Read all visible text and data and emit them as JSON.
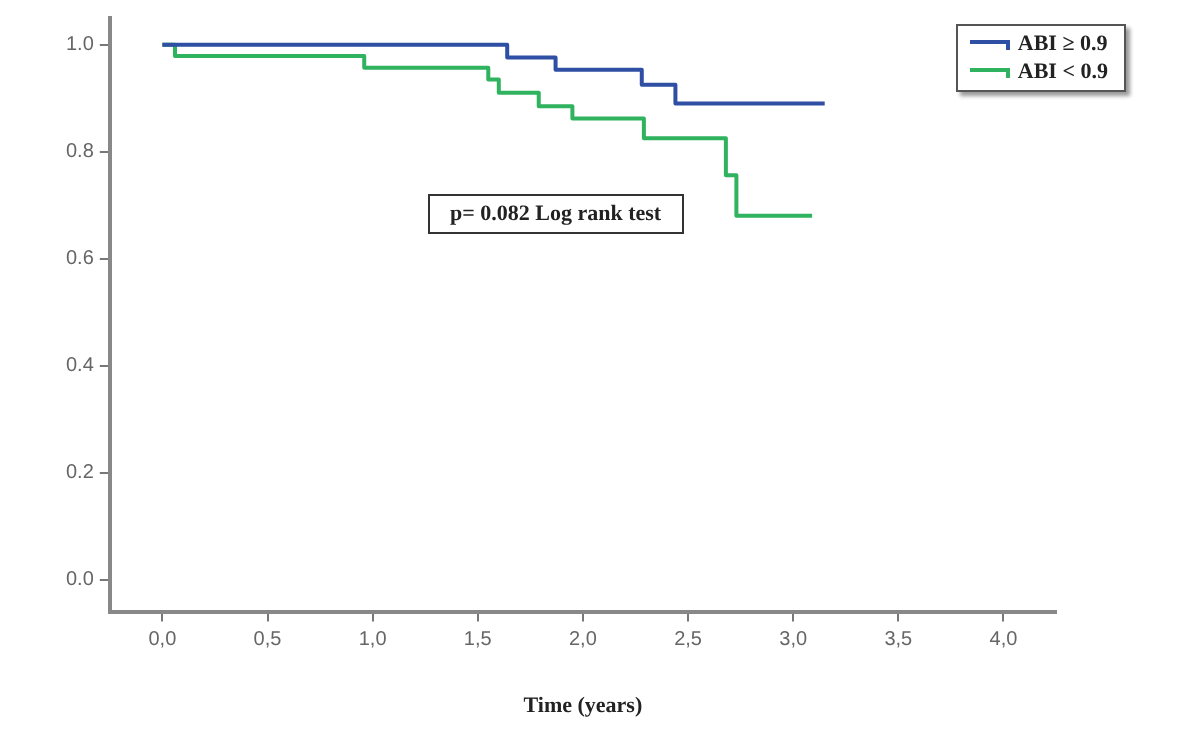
{
  "chart_data": {
    "type": "step",
    "xlabel": "Time (years)",
    "legend": "top right",
    "grid": false,
    "marker": "none",
    "line_style": "solid",
    "xlim": [
      -0.25,
      4.25
    ],
    "xticks": [
      {
        "value": 0,
        "label": "0,0"
      },
      {
        "value": 0.5,
        "label": "0,5"
      },
      {
        "value": 1,
        "label": "1,0"
      },
      {
        "value": 1.5,
        "label": "1,5"
      },
      {
        "value": 2,
        "label": "2,0"
      },
      {
        "value": 2.5,
        "label": "2,5"
      },
      {
        "value": 3,
        "label": "3,0"
      },
      {
        "value": 3.5,
        "label": "3,5"
      },
      {
        "value": 4,
        "label": "4,0"
      }
    ],
    "ylim": [
      -0.06,
      1.05
    ],
    "yticks": [
      {
        "value": 0,
        "label": "0.0"
      },
      {
        "value": 0.2,
        "label": "0.2"
      },
      {
        "value": 0.4,
        "label": "0.4"
      },
      {
        "value": 0.6,
        "label": "0.6"
      },
      {
        "value": 0.8,
        "label": "0.8"
      },
      {
        "value": 1,
        "label": "1.0"
      }
    ],
    "annotations": [
      "p= 0.082 Log rank test"
    ],
    "series": [
      {
        "name": "ABI ≥ 0.9",
        "color": "#2e4fa3",
        "x": [
          0,
          1.64,
          1.87,
          2.28,
          2.44,
          3.15
        ],
        "values": [
          1,
          0.976,
          0.953,
          0.925,
          0.89,
          0.89
        ]
      },
      {
        "name": "ABI < 0.9",
        "color": "#2fb35e",
        "x": [
          0,
          0.06,
          0.96,
          1.55,
          1.6,
          1.79,
          1.95,
          2.29,
          2.68,
          2.73,
          3.09
        ],
        "values": [
          1,
          0.979,
          0.957,
          0.935,
          0.91,
          0.885,
          0.862,
          0.825,
          0.756,
          0.68,
          0.68
        ]
      }
    ]
  }
}
